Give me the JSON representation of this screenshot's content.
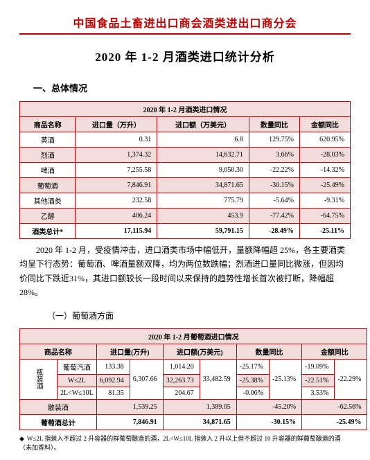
{
  "header": "中国食品土畜进出口商会酒类进出口商分会",
  "mainTitle": "2020 年 1-2 月酒类进口统计分析",
  "section1": "一、总体情况",
  "table1": {
    "caption": "2020 年 1-2 月酒类进口情况",
    "cols": [
      "商品名称",
      "进口量（万升）",
      "进口额（万美元）",
      "数量同比",
      "金额同比"
    ],
    "rows": [
      [
        "黄酒",
        "0.31",
        "6.8",
        "129.75%",
        "620.95%"
      ],
      [
        "烈酒",
        "1,374.32",
        "14,632.71",
        "3.66%",
        "-28.03%"
      ],
      [
        "啤酒",
        "7,255.58",
        "9,050.30",
        "-22.22%",
        "-14.32%"
      ],
      [
        "葡萄酒",
        "7,846.91",
        "34,871.65",
        "-30.15%",
        "-25.49%"
      ],
      [
        "其他酒类",
        "232.58",
        "775.79",
        "-5.64%",
        "-9.31%"
      ],
      [
        "乙醇",
        "406.24",
        "453.9",
        "-77.42%",
        "-64.75%"
      ],
      [
        "酒类总计*",
        "17,115.94",
        "59,791.15",
        "-28.49%",
        "-25.11%"
      ]
    ]
  },
  "para1a": "2020 年 1-2 月，受疫情冲击，进口酒类市场中幅低开，量额降幅超 25%，各主要酒类均呈下行态势：葡萄酒、啤酒量额双降，均为两位数跌幅；烈酒进口量同比微涨，但因均价同比下跌近31%，其进口额较长一段时间以来保持的趋势性增长首次被打断，降幅超 28%。",
  "sub1": "（一）葡萄酒方面",
  "table2": {
    "caption": "2020 年 1-2 月葡萄酒进口情况",
    "cols": [
      "商品名称",
      "进口量(万升)",
      "进口额(万美元)",
      "数量同比",
      "金额同比"
    ],
    "groupLabel": "瓶装酒",
    "rows": [
      {
        "name": "葡萄汽酒",
        "qty": "133.38",
        "amt": "1,014.20",
        "qpct": "-25.17%",
        "apct": "-19.09%"
      },
      {
        "name": "W≤2L",
        "qty": "6,092.94",
        "amt": "32,263.73",
        "qpct": "-25.38%",
        "apct": "-22.51%"
      },
      {
        "name": "2L<W≤10L",
        "qty": "81.35",
        "amt": "204.67",
        "qpct": "-0.06%",
        "apct": "3.53%"
      }
    ],
    "rowSum": {
      "qty": "6,307.66",
      "amt": "33,482.59",
      "qpct": "-25.13%",
      "apct": "-22.29%"
    },
    "sanRow": {
      "name": "散装酒",
      "qty": "1,539.25",
      "amt": "1,389.05",
      "qpct": "-45.20%",
      "apct": "-62.56%"
    },
    "totalRow": {
      "name": "葡萄酒总计",
      "qty": "7,846.91",
      "amt": "34,871.65",
      "qpct": "-30.15%",
      "apct": "-25.49%"
    }
  },
  "footnote": "W≤2L 指装入不超过 2 升容器的鲜葡萄酿造的酒，2L<W≤10L 指装入 2 升以上但不超过 10 升容器的鲜葡萄酿造的酒（未加香料）。"
}
